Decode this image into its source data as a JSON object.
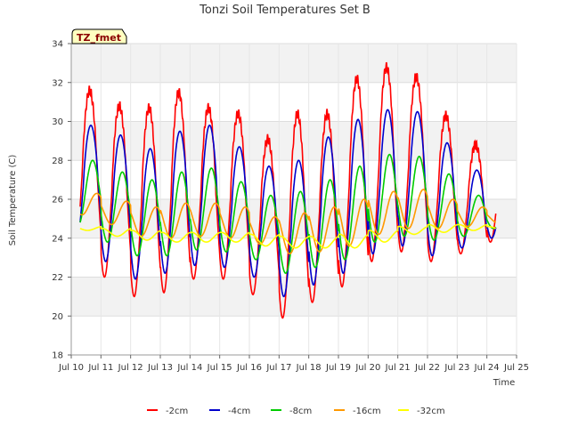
{
  "chart_data": {
    "type": "line",
    "title": "Tonzi Soil Temperatures Set B",
    "xlabel": "Time",
    "ylabel": "Soil Temperature (C)",
    "badge": "TZ_fmet",
    "xlim": [
      10,
      25
    ],
    "ylim": [
      18,
      34
    ],
    "x_ticks": [
      10,
      11,
      12,
      13,
      14,
      15,
      16,
      17,
      18,
      19,
      20,
      21,
      22,
      23,
      24,
      25
    ],
    "x_tick_labels": [
      "Jul 10",
      "Jul 11",
      "Jul 12",
      "Jul 13",
      "Jul 14",
      "Jul 15",
      "Jul 16",
      "Jul 17",
      "Jul 18",
      "Jul 19",
      "Jul 20",
      "Jul 21",
      "Jul 22",
      "Jul 23",
      "Jul 24",
      "Jul 25"
    ],
    "y_ticks": [
      18,
      20,
      22,
      24,
      26,
      28,
      30,
      32,
      34
    ],
    "y_tick_labels": [
      "18",
      "20",
      "22",
      "24",
      "26",
      "28",
      "30",
      "32",
      "34"
    ],
    "grid": true,
    "legend_position": "bottom",
    "days": [
      10,
      11,
      12,
      13,
      14,
      15,
      16,
      17,
      18,
      19,
      20,
      21,
      22,
      23,
      24
    ],
    "series": [
      {
        "name": "-2cm",
        "color": "#ff0000",
        "phase": 0.62,
        "min": [
          23.0,
          22.0,
          21.0,
          21.2,
          21.9,
          21.9,
          21.1,
          19.9,
          20.7,
          21.5,
          22.8,
          23.3,
          22.8,
          23.2,
          23.8
        ],
        "max": [
          31.6,
          30.8,
          30.7,
          31.5,
          30.7,
          30.4,
          29.1,
          30.4,
          30.4,
          32.2,
          32.8,
          32.3,
          30.3,
          28.8,
          28.6
        ]
      },
      {
        "name": "-4cm",
        "color": "#0000cc",
        "phase": 0.66,
        "min": [
          23.6,
          22.8,
          21.9,
          22.2,
          22.6,
          22.5,
          22.0,
          21.0,
          21.6,
          22.2,
          23.2,
          23.6,
          23.1,
          23.5,
          24.0
        ],
        "max": [
          29.8,
          29.3,
          28.6,
          29.5,
          29.8,
          28.7,
          27.7,
          28.0,
          29.2,
          30.1,
          30.6,
          30.5,
          28.9,
          27.5,
          26.8
        ]
      },
      {
        "name": "-8cm",
        "color": "#00cc00",
        "phase": 0.72,
        "min": [
          24.6,
          23.8,
          23.1,
          23.1,
          23.4,
          23.3,
          22.9,
          22.2,
          22.5,
          22.9,
          23.8,
          24.1,
          23.9,
          24.1,
          24.5
        ],
        "max": [
          28.0,
          27.4,
          27.0,
          27.4,
          27.6,
          26.9,
          26.2,
          26.4,
          27.0,
          27.7,
          28.3,
          28.2,
          27.3,
          26.2,
          25.6
        ]
      },
      {
        "name": "-16cm",
        "color": "#ff9900",
        "phase": 0.86,
        "min": [
          25.2,
          24.7,
          24.1,
          24.0,
          24.1,
          24.0,
          23.7,
          23.2,
          23.3,
          23.6,
          24.2,
          24.5,
          24.5,
          24.6,
          24.8
        ],
        "max": [
          26.3,
          25.9,
          25.6,
          25.8,
          25.8,
          25.6,
          25.1,
          25.3,
          25.6,
          26.0,
          26.4,
          26.5,
          26.0,
          25.6,
          25.3
        ]
      },
      {
        "name": "-32cm",
        "color": "#ffff00",
        "phase": 0.05,
        "min": [
          24.4,
          24.1,
          23.9,
          23.8,
          23.8,
          23.8,
          23.6,
          23.5,
          23.5,
          23.5,
          23.8,
          24.2,
          24.3,
          24.4,
          24.4
        ],
        "max": [
          24.6,
          24.5,
          24.4,
          24.3,
          24.3,
          24.3,
          24.2,
          24.1,
          24.1,
          24.2,
          24.4,
          24.6,
          24.7,
          24.7,
          24.6
        ]
      }
    ],
    "x_end": 24.3,
    "x_start": 10.3
  }
}
